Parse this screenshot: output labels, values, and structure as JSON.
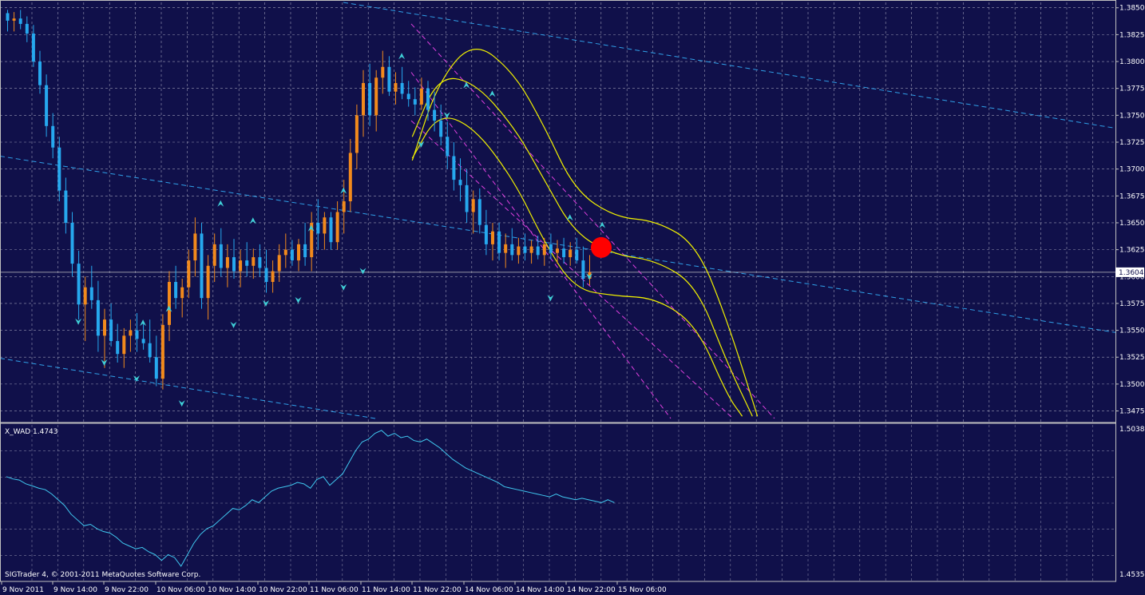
{
  "indicator_label": "X_WAD 1.4743",
  "footer": "SIGTrader 4, © 2001-2011 MetaQuotes Software Corp.",
  "colors": {
    "background": "#10104a",
    "grid": "#c8c8d8",
    "bear": "#26a8ee",
    "bull": "#f28a1c",
    "yellow": "#f0f000",
    "magenta": "#e040e0",
    "trendline": "#30a0e8",
    "wad": "#40c8f0",
    "arrow": "#40d0d8",
    "signal": "#ff0000"
  },
  "chart_data": [
    {
      "type": "candlestick",
      "symbol_price_current": "1.3604",
      "ylim": [
        1.3465,
        1.3855
      ],
      "yticks": [
        "1.3850",
        "1.3825",
        "1.3800",
        "1.3775",
        "1.3750",
        "1.3725",
        "1.3700",
        "1.3675",
        "1.3650",
        "1.3625",
        "1.3600",
        "1.3575",
        "1.3550",
        "1.3525",
        "1.3500",
        "1.3475"
      ],
      "x_labels": [
        "9 Nov 2011",
        "9 Nov 14:00",
        "9 Nov 22:00",
        "10 Nov 06:00",
        "10 Nov 14:00",
        "10 Nov 22:00",
        "11 Nov 06:00",
        "11 Nov 14:00",
        "11 Nov 22:00",
        "14 Nov 06:00",
        "14 Nov 14:00",
        "14 Nov 22:00",
        "15 Nov 06:00"
      ],
      "bar_count": 100,
      "candles": [
        [
          1.3845,
          1.3848,
          1.3828,
          1.3838
        ],
        [
          1.3838,
          1.3846,
          1.3828,
          1.384
        ],
        [
          1.384,
          1.3848,
          1.383,
          1.3835
        ],
        [
          1.3835,
          1.3842,
          1.3818,
          1.3826
        ],
        [
          1.3826,
          1.3834,
          1.3795,
          1.38
        ],
        [
          1.38,
          1.381,
          1.377,
          1.3778
        ],
        [
          1.3778,
          1.3788,
          1.373,
          1.374
        ],
        [
          1.374,
          1.3752,
          1.371,
          1.372
        ],
        [
          1.372,
          1.373,
          1.367,
          1.368
        ],
        [
          1.368,
          1.3692,
          1.364,
          1.365
        ],
        [
          1.365,
          1.366,
          1.36,
          1.3612
        ],
        [
          1.3612,
          1.3624,
          1.356,
          1.3574
        ],
        [
          1.3574,
          1.36,
          1.354,
          1.359
        ],
        [
          1.359,
          1.361,
          1.357,
          1.3578
        ],
        [
          1.3578,
          1.3596,
          1.353,
          1.3545
        ],
        [
          1.3545,
          1.357,
          1.3515,
          1.356
        ],
        [
          1.356,
          1.3575,
          1.3535,
          1.354
        ],
        [
          1.354,
          1.3556,
          1.352,
          1.3528
        ],
        [
          1.3528,
          1.3552,
          1.3515,
          1.3545
        ],
        [
          1.3545,
          1.356,
          1.353,
          1.355
        ],
        [
          1.355,
          1.3566,
          1.353,
          1.3542
        ],
        [
          1.3542,
          1.3558,
          1.3532,
          1.3538
        ],
        [
          1.3538,
          1.356,
          1.352,
          1.3525
        ],
        [
          1.3525,
          1.3545,
          1.3498,
          1.3505
        ],
        [
          1.3505,
          1.3565,
          1.3495,
          1.3555
        ],
        [
          1.3555,
          1.3605,
          1.354,
          1.3595
        ],
        [
          1.3595,
          1.361,
          1.357,
          1.358
        ],
        [
          1.358,
          1.3598,
          1.3562,
          1.359
        ],
        [
          1.359,
          1.3625,
          1.358,
          1.3615
        ],
        [
          1.3615,
          1.3655,
          1.36,
          1.364
        ],
        [
          1.364,
          1.365,
          1.357,
          1.358
        ],
        [
          1.358,
          1.362,
          1.356,
          1.361
        ],
        [
          1.361,
          1.364,
          1.3595,
          1.363
        ],
        [
          1.363,
          1.3645,
          1.36,
          1.3608
        ],
        [
          1.3608,
          1.363,
          1.359,
          1.3618
        ],
        [
          1.3618,
          1.3635,
          1.3598,
          1.3605
        ],
        [
          1.3605,
          1.3625,
          1.359,
          1.3615
        ],
        [
          1.3615,
          1.3632,
          1.36,
          1.361
        ],
        [
          1.361,
          1.3626,
          1.3598,
          1.3618
        ],
        [
          1.3618,
          1.363,
          1.36,
          1.3608
        ],
        [
          1.3608,
          1.3625,
          1.3585,
          1.3595
        ],
        [
          1.3595,
          1.3615,
          1.3585,
          1.3605
        ],
        [
          1.3605,
          1.363,
          1.3595,
          1.362
        ],
        [
          1.362,
          1.364,
          1.3608,
          1.3625
        ],
        [
          1.3625,
          1.3634,
          1.361,
          1.3615
        ],
        [
          1.3615,
          1.3635,
          1.3605,
          1.363
        ],
        [
          1.363,
          1.365,
          1.361,
          1.3618
        ],
        [
          1.3618,
          1.366,
          1.3605,
          1.365
        ],
        [
          1.365,
          1.3672,
          1.3625,
          1.364
        ],
        [
          1.364,
          1.366,
          1.3625,
          1.3655
        ],
        [
          1.3655,
          1.366,
          1.3625,
          1.3632
        ],
        [
          1.3632,
          1.367,
          1.3625,
          1.366
        ],
        [
          1.366,
          1.369,
          1.364,
          1.367
        ],
        [
          1.367,
          1.3728,
          1.366,
          1.3715
        ],
        [
          1.3715,
          1.376,
          1.37,
          1.375
        ],
        [
          1.375,
          1.3792,
          1.373,
          1.378
        ],
        [
          1.378,
          1.3798,
          1.374,
          1.375
        ],
        [
          1.375,
          1.3792,
          1.3735,
          1.3785
        ],
        [
          1.3785,
          1.381,
          1.377,
          1.3795
        ],
        [
          1.3795,
          1.3805,
          1.3768,
          1.3772
        ],
        [
          1.3772,
          1.379,
          1.376,
          1.378
        ],
        [
          1.378,
          1.3795,
          1.3765,
          1.377
        ],
        [
          1.377,
          1.3782,
          1.3758,
          1.3765
        ],
        [
          1.3765,
          1.3776,
          1.375,
          1.376
        ],
        [
          1.376,
          1.3785,
          1.3755,
          1.3775
        ],
        [
          1.3775,
          1.3782,
          1.3745,
          1.3755
        ],
        [
          1.3755,
          1.3772,
          1.3735,
          1.3745
        ],
        [
          1.3745,
          1.376,
          1.3722,
          1.373
        ],
        [
          1.373,
          1.3744,
          1.37,
          1.3712
        ],
        [
          1.3712,
          1.3725,
          1.368,
          1.369
        ],
        [
          1.369,
          1.371,
          1.367,
          1.3685
        ],
        [
          1.3685,
          1.37,
          1.365,
          1.366
        ],
        [
          1.366,
          1.368,
          1.364,
          1.3672
        ],
        [
          1.3672,
          1.3682,
          1.364,
          1.3648
        ],
        [
          1.3648,
          1.3662,
          1.362,
          1.363
        ],
        [
          1.363,
          1.365,
          1.3615,
          1.3642
        ],
        [
          1.3642,
          1.365,
          1.3615,
          1.3622
        ],
        [
          1.3622,
          1.364,
          1.3608,
          1.363
        ],
        [
          1.363,
          1.3645,
          1.3615,
          1.362
        ],
        [
          1.362,
          1.3636,
          1.3612,
          1.3628
        ],
        [
          1.3628,
          1.364,
          1.3615,
          1.3622
        ],
        [
          1.3622,
          1.3634,
          1.3612,
          1.3628
        ],
        [
          1.3628,
          1.3638,
          1.3616,
          1.362
        ],
        [
          1.362,
          1.3636,
          1.361,
          1.363
        ],
        [
          1.363,
          1.364,
          1.3616,
          1.3622
        ],
        [
          1.3622,
          1.3634,
          1.3612,
          1.3626
        ],
        [
          1.3626,
          1.3636,
          1.3612,
          1.3618
        ],
        [
          1.3618,
          1.3632,
          1.361,
          1.3625
        ],
        [
          1.3625,
          1.3636,
          1.3612,
          1.3615
        ],
        [
          1.3615,
          1.3628,
          1.359,
          1.3598
        ],
        [
          1.3598,
          1.362,
          1.3592,
          1.3604
        ]
      ],
      "upper_band": [
        [
          1.3708,
          0
        ],
        [
          1.378,
          5
        ],
        [
          1.382,
          12
        ],
        [
          1.379,
          20
        ],
        [
          1.374,
          26
        ],
        [
          1.368,
          32
        ],
        [
          1.3655,
          40
        ],
        [
          1.3652,
          48
        ],
        [
          1.363,
          56
        ],
        [
          1.356,
          62
        ],
        [
          1.347,
          68
        ]
      ],
      "middle_band": [
        [
          1.373,
          0
        ],
        [
          1.3786,
          5
        ],
        [
          1.3782,
          12
        ],
        [
          1.374,
          20
        ],
        [
          1.369,
          26
        ],
        [
          1.364,
          32
        ],
        [
          1.362,
          40
        ],
        [
          1.3615,
          48
        ],
        [
          1.3592,
          56
        ],
        [
          1.352,
          62
        ],
        [
          1.347,
          67
        ]
      ],
      "lower_band": [
        [
          1.371,
          0
        ],
        [
          1.3752,
          5
        ],
        [
          1.374,
          12
        ],
        [
          1.369,
          20
        ],
        [
          1.3632,
          26
        ],
        [
          1.3588,
          32
        ],
        [
          1.3582,
          40
        ],
        [
          1.358,
          48
        ],
        [
          1.3555,
          56
        ],
        [
          1.349,
          62
        ],
        [
          1.347,
          65
        ]
      ]
    },
    {
      "type": "line",
      "name": "X_WAD",
      "ylim": [
        1.4535,
        1.5038
      ],
      "yticks": [
        "1.5038",
        "1.4535"
      ],
      "values": [
        1.487,
        1.4862,
        1.4858,
        1.4845,
        1.4838,
        1.483,
        1.4825,
        1.481,
        1.479,
        1.477,
        1.474,
        1.472,
        1.47,
        1.4705,
        1.469,
        1.468,
        1.4675,
        1.466,
        1.464,
        1.463,
        1.462,
        1.4625,
        1.461,
        1.46,
        1.458,
        1.46,
        1.459,
        1.456,
        1.46,
        1.464,
        1.467,
        1.469,
        1.47,
        1.472,
        1.474,
        1.476,
        1.4755,
        1.477,
        1.479,
        1.478,
        1.48,
        1.482,
        1.483,
        1.4835,
        1.484,
        1.485,
        1.4845,
        1.483,
        1.486,
        1.487,
        1.484,
        1.486,
        1.488,
        1.492,
        1.496,
        1.499,
        1.5,
        1.502,
        1.503,
        1.501,
        1.502,
        1.5005,
        1.501,
        1.4995,
        1.499,
        1.5,
        1.4985,
        1.497,
        1.495,
        1.493,
        1.4915,
        1.49,
        1.489,
        1.488,
        1.487,
        1.486,
        1.485,
        1.4835,
        1.483,
        1.4825,
        1.482,
        1.4815,
        1.481,
        1.4805,
        1.48,
        1.481,
        1.48,
        1.4795,
        1.479,
        1.4795,
        1.479,
        1.4785,
        1.478,
        1.479,
        1.478
      ]
    }
  ]
}
